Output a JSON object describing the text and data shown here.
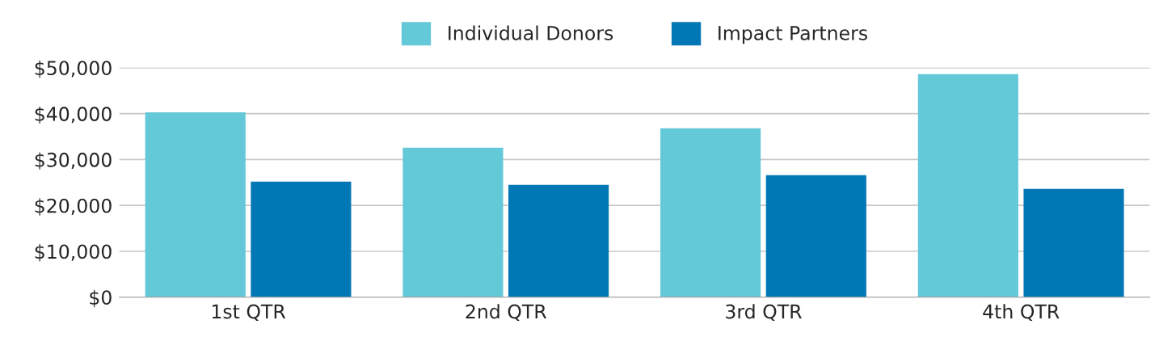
{
  "chart_data": {
    "type": "bar",
    "categories": [
      "1st QTR",
      "2nd QTR",
      "3rd QTR",
      "4th QTR"
    ],
    "series": [
      {
        "name": "Individual Donors",
        "color": "#63c8d8",
        "values": [
          40300,
          32600,
          36800,
          48600
        ]
      },
      {
        "name": "Impact Partners",
        "color": "#0277b6",
        "values": [
          25200,
          24500,
          26600,
          23600
        ]
      }
    ],
    "ylim": [
      0,
      50000
    ],
    "yticks": [
      {
        "value": 0,
        "label": "$0"
      },
      {
        "value": 10000,
        "label": "$10,000"
      },
      {
        "value": 20000,
        "label": "$20,000"
      },
      {
        "value": 30000,
        "label": "$30,000"
      },
      {
        "value": 40000,
        "label": "$40,000"
      },
      {
        "value": 50000,
        "label": "$50,000"
      }
    ],
    "grid": "y",
    "legend": "top"
  }
}
